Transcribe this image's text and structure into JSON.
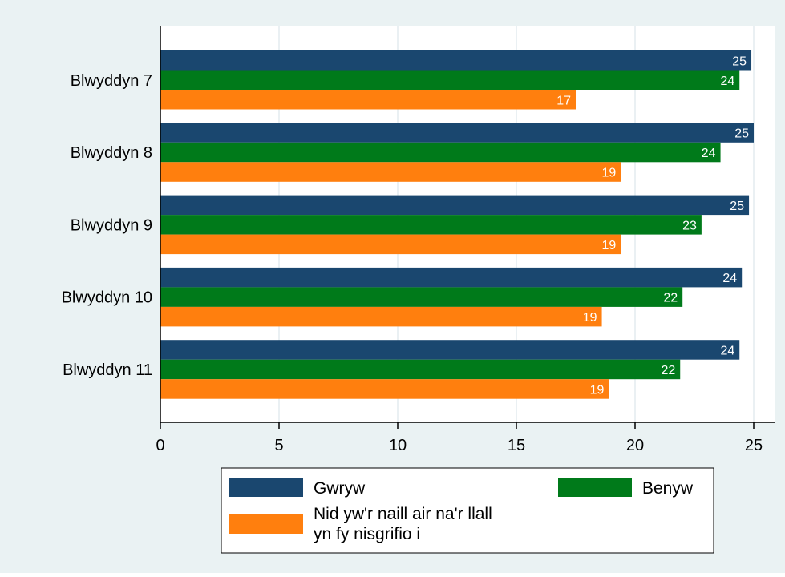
{
  "colors": {
    "outer_background": "#eaf2f3",
    "plot_background": "#ffffff",
    "grid": "#e4ecef",
    "axis": "#000000",
    "series": [
      "#1a476f",
      "#007a1a",
      "#ff7f0e"
    ]
  },
  "chart_data": {
    "type": "bar",
    "orientation": "horizontal",
    "categories": [
      "Blwyddyn 7",
      "Blwyddyn 8",
      "Blwyddyn 9",
      "Blwyddyn 10",
      "Blwyddyn 11"
    ],
    "series": [
      {
        "name": "Gwryw",
        "values": [
          24.9,
          25.0,
          24.8,
          24.5,
          24.4
        ],
        "labels": [
          "25",
          "25",
          "25",
          "24",
          "24"
        ]
      },
      {
        "name": "Benyw",
        "values": [
          24.4,
          23.6,
          22.8,
          22.0,
          21.9
        ],
        "labels": [
          "24",
          "24",
          "23",
          "22",
          "22"
        ]
      },
      {
        "name": "Nid yw'r naill air na'r llall yn fy nisgrifio i",
        "values": [
          17.5,
          19.4,
          19.4,
          18.6,
          18.9
        ],
        "labels": [
          "17",
          "19",
          "19",
          "19",
          "19"
        ]
      }
    ],
    "legend_lines": {
      "series_1": [
        "Gwryw"
      ],
      "series_2": [
        "Benyw"
      ],
      "series_3": [
        "Nid yw'r naill air na'r llall",
        "yn fy nisgrifio i"
      ]
    },
    "xlim": [
      0,
      26
    ],
    "xticks": [
      0,
      5,
      10,
      15,
      20,
      25
    ],
    "grid": true,
    "legend_position": "bottom",
    "title": "",
    "xlabel": "",
    "ylabel": ""
  }
}
